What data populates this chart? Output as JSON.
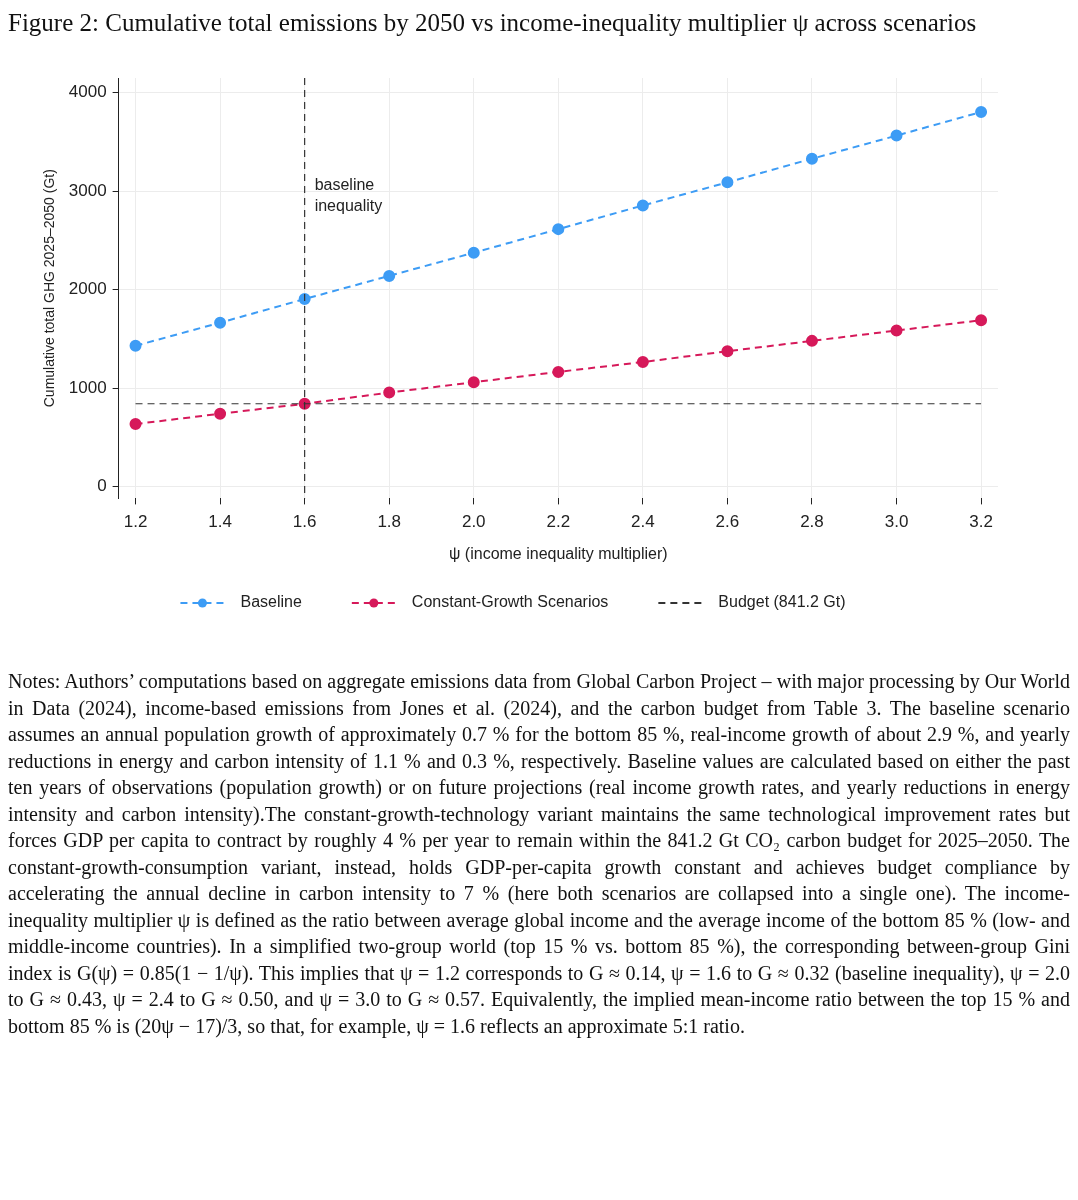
{
  "chart_data": {
    "type": "line",
    "title": "Figure 2: Cumulative total emissions by 2050 vs income-inequality multiplier ψ across scenarios",
    "xlabel": "ψ (income inequality multiplier)",
    "ylabel": "Cumulative total GHG 2025–2050 (Gt)",
    "x": [
      1.2,
      1.4,
      1.6,
      1.8,
      2.0,
      2.2,
      2.4,
      2.6,
      2.8,
      3.0,
      3.2
    ],
    "series": [
      {
        "name": "Baseline",
        "color": "#3d9cf5",
        "values": [
          1430,
          1665,
          1905,
          2140,
          2375,
          2615,
          2855,
          3090,
          3330,
          3565,
          3805
        ]
      },
      {
        "name": "Constant-Growth Scenarios",
        "color": "#d6195a",
        "values": [
          635,
          740,
          841,
          955,
          1060,
          1165,
          1265,
          1375,
          1480,
          1585,
          1690
        ]
      }
    ],
    "xlim": [
      1.16,
      3.24
    ],
    "ylim": [
      -120,
      4150
    ],
    "xticks": [
      1.2,
      1.4,
      1.6,
      1.8,
      {
        "value": 2,
        "label": "2.0"
      },
      2.2,
      2.4,
      2.6,
      2.8,
      {
        "value": 3,
        "label": "3.0"
      },
      3.2
    ],
    "yticks": [
      0,
      1000,
      2000,
      3000,
      4000
    ],
    "ref_lines": [
      {
        "axis": "x",
        "value": 1.6,
        "label": "baseline\ninequality",
        "color": "#333333",
        "line_style": "dashed"
      },
      {
        "axis": "y",
        "value": 841.2,
        "label": "Budget (841.2 Gt)",
        "color": "#333333",
        "line_style": "dashed"
      }
    ],
    "grid": true,
    "legend": "bottom",
    "marker": "circle",
    "line_style": "dashed",
    "annotations": [
      "Notes: Authors’ computations based on aggregate emissions data from Global Carbon Project – with major processing by Our World in Data (2024), income-based emissions from Jones et al. (2024), and the carbon budget from Table 3. The baseline scenario assumes an annual population growth of approximately 0.7 % for the bottom 85 %, real-income growth of about 2.9 %, and yearly reductions in energy and carbon intensity of 1.1 % and 0.3 %, respectively. Baseline values are calculated based on either the past ten years of observations (population growth) or on future projections (real income growth rates, and yearly reductions in energy intensity and carbon intensity).The constant-growth-technology variant maintains the same technological improvement rates but forces GDP per capita to contract by roughly 4 % per year to remain within the 841.2 Gt CO₂ carbon budget for 2025–2050. The constant-growth-consumption variant, instead, holds GDP-per-capita growth constant and achieves budget compliance by accelerating the annual decline in carbon intensity to 7 % (here both scenarios are collapsed into a single one). The income-inequality multiplier ψ is defined as the ratio between average global income and the average income of the bottom 85 % (low- and middle-income countries). In a simplified two-group world (top 15 % vs. bottom 85 %), the corresponding between-group Gini index is G(ψ) = 0.85(1 − 1/ψ). This implies that ψ = 1.2 corresponds to G ≈ 0.14, ψ = 1.6 to G ≈ 0.32 (baseline inequality), ψ = 2.0 to G ≈ 0.43, ψ = 2.4 to G ≈ 0.50, and ψ = 3.0 to G ≈ 0.57. Equivalently, the implied mean-income ratio between the top 15 % and bottom 85 % is (20ψ − 17)/3, so that, for example, ψ = 1.6 reflects an approximate 5:1 ratio."
    ]
  }
}
